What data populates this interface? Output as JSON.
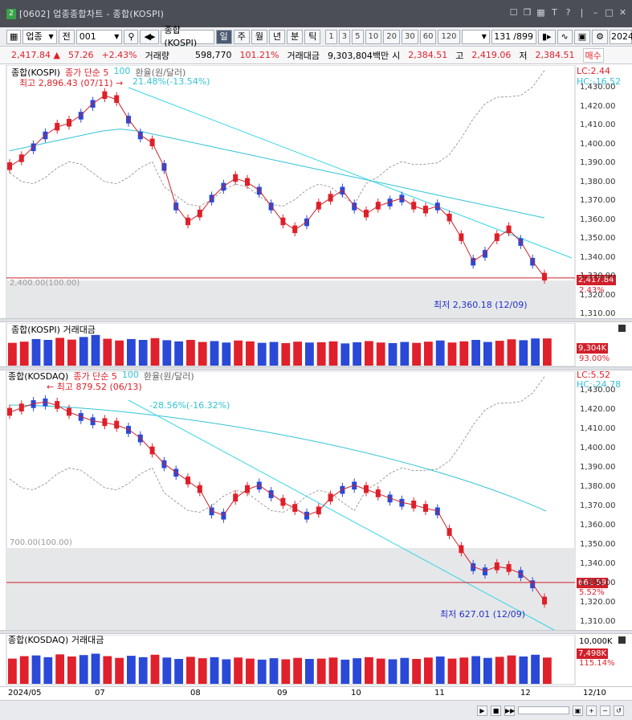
{
  "window": {
    "title": "[0602] 업종종합차트 - 종합(KOSPI)",
    "badge": "2",
    "icons": [
      "minimize-icon",
      "maximize-icon",
      "close-icon"
    ]
  },
  "toolbar": {
    "market": "업종",
    "all": "전",
    "code": "001",
    "name": "종합(KOSPI)",
    "periods": [
      "일",
      "주",
      "월",
      "년",
      "분",
      "틱"
    ],
    "selected_period": "일",
    "numbers": [
      "1",
      "3",
      "5",
      "10",
      "20",
      "30",
      "60",
      "120"
    ],
    "count": "131",
    "count_total": "/899",
    "date_field": "2024"
  },
  "quote": {
    "price": "2,417.84",
    "arrow": "▲",
    "change": "57.26",
    "change_pct": "+2.43%",
    "volume_label": "거래량",
    "volume": "598,770",
    "volume_pct": "101.21%",
    "amount_label": "거래대금",
    "amount": "9,303,804백만",
    "open_label": "시",
    "open": "2,384.51",
    "high_label": "고",
    "high": "2,419.06",
    "low_label": "저",
    "low": "2,384.51",
    "extra": "매수"
  },
  "kospi": {
    "legend": [
      "종합(KOSPI)",
      "종가 단순 5",
      "100",
      "환율(원/달러)"
    ],
    "max_label": "최고 2,896.43 (07/11)",
    "max_change": "21.48%(-13.54%)",
    "min_label": "최저 2,360.18 (12/09)",
    "lc": "LC:2.44",
    "hc": "HC:-16.52",
    "baseline": "2,400.00(100.00)",
    "last_value": "2,417.84",
    "last_pct": "2.43%",
    "fx_ticks": [
      "1,430.00",
      "1,420.00",
      "1,410.00",
      "1,400.00",
      "1,390.00",
      "1,380.00",
      "1,370.00",
      "1,360.00",
      "1,350.00",
      "1,340.00",
      "1,330.00",
      "1,320.00",
      "1,310.00"
    ]
  },
  "kospi_volume": {
    "legend": "종합(KOSPI) 거래대금",
    "value": "9,304K",
    "pct": "93.00%"
  },
  "kosdaq": {
    "legend": [
      "종합(KOSDAQ)",
      "종가 단순 5",
      "100",
      "환율(원/달러)"
    ],
    "max_label": "최고 879.52 (06/13)",
    "max_change": "-28.56%(-16.32%)",
    "min_label": "최저 627.01 (12/09)",
    "lc": "LC:5.52",
    "hc": "HC:-24.78",
    "baseline": "700.00(100.00)",
    "last_value": "661.59",
    "last_pct": "5.52%",
    "fx_ticks": [
      "1,430.00",
      "1,420.00",
      "1,410.00",
      "1,400.00",
      "1,390.00",
      "1,380.00",
      "1,370.00",
      "1,360.00",
      "1,350.00",
      "1,340.00",
      "1,330.00",
      "1,320.00",
      "1,310.00"
    ]
  },
  "kosdaq_volume": {
    "legend": "종합(KOSDAQ) 거래대금",
    "ymax": "10,000K",
    "value": "7,498K",
    "pct": "115.14%"
  },
  "dates": [
    "2024/05",
    "07",
    "08",
    "09",
    "10",
    "11",
    "12",
    "12/10"
  ],
  "colors": {
    "up": "#e0202a",
    "down": "#2a49d6",
    "ma5": "#d0202a",
    "ma100": "#33c4d6",
    "fx": "#888888",
    "trend": "#33d6e6"
  },
  "chart_data": [
    {
      "type": "candlestick",
      "title": "종합(KOSPI)",
      "series": [
        {
          "name": "종가 단순 5",
          "values": [
            2700,
            2720,
            2750,
            2780,
            2800,
            2810,
            2830,
            2860,
            2880,
            2870,
            2820,
            2780,
            2760,
            2700,
            2600,
            2560,
            2580,
            2620,
            2650,
            2670,
            2660,
            2640,
            2600,
            2560,
            2540,
            2560,
            2600,
            2620,
            2640,
            2600,
            2580,
            2600,
            2610,
            2620,
            2600,
            2590,
            2600,
            2570,
            2520,
            2460,
            2480,
            2520,
            2540,
            2510,
            2460,
            2420
          ]
        },
        {
          "name": "100",
          "values": [
            2740,
            2750,
            2760,
            2770,
            2780,
            2790,
            2795,
            2790,
            2780,
            2770,
            2760,
            2750,
            2740,
            2730,
            2720,
            2710,
            2700,
            2690,
            2680,
            2670,
            2660,
            2650,
            2640,
            2630,
            2620,
            2610,
            2600,
            2590,
            2580,
            2570
          ]
        }
      ],
      "ohlc_trend_min": 2360.18,
      "ohlc_trend_max": 2896.43,
      "last": 2417.84
    },
    {
      "type": "bar",
      "title": "종합(KOSPI) 거래대금",
      "values": [
        7800,
        8200,
        9100,
        8800,
        9500,
        8900,
        9800,
        10500,
        9200,
        8600,
        9100,
        8800,
        9400,
        8700,
        8300,
        8800,
        8100,
        8400,
        7900,
        8600,
        8300,
        7800,
        8100,
        7700,
        8200,
        7900,
        8000,
        8300,
        7600,
        8000,
        8400,
        7900,
        7700,
        8100,
        7800,
        8200,
        8600,
        7900,
        8300,
        8800,
        8100,
        8500,
        9000,
        8700,
        9300,
        9304
      ]
    },
    {
      "type": "candlestick",
      "title": "종합(KOSDAQ)",
      "series": [
        {
          "name": "종가 단순 5",
          "values": [
            860,
            865,
            870,
            872,
            868,
            860,
            855,
            850,
            848,
            845,
            840,
            830,
            815,
            800,
            790,
            780,
            770,
            745,
            740,
            760,
            770,
            775,
            765,
            755,
            748,
            740,
            745,
            760,
            770,
            775,
            770,
            765,
            760,
            755,
            752,
            748,
            745,
            720,
            700,
            680,
            675,
            680,
            678,
            672,
            660,
            640
          ]
        }
      ],
      "ohlc_trend_min": 627.01,
      "ohlc_trend_max": 879.52,
      "last": 661.59
    },
    {
      "type": "bar",
      "title": "종합(KOSDAQ) 거래대금",
      "values": [
        7200,
        7900,
        8100,
        7600,
        8400,
        7800,
        8200,
        8600,
        7900,
        7400,
        8000,
        7600,
        8300,
        7500,
        7100,
        7700,
        7300,
        7600,
        7000,
        7500,
        7200,
        6900,
        7300,
        7000,
        7400,
        7100,
        7200,
        7500,
        6900,
        7300,
        7600,
        7200,
        7000,
        7400,
        7100,
        7500,
        7800,
        7200,
        7500,
        7900,
        7400,
        7700,
        8100,
        7800,
        8300,
        7498
      ]
    }
  ]
}
